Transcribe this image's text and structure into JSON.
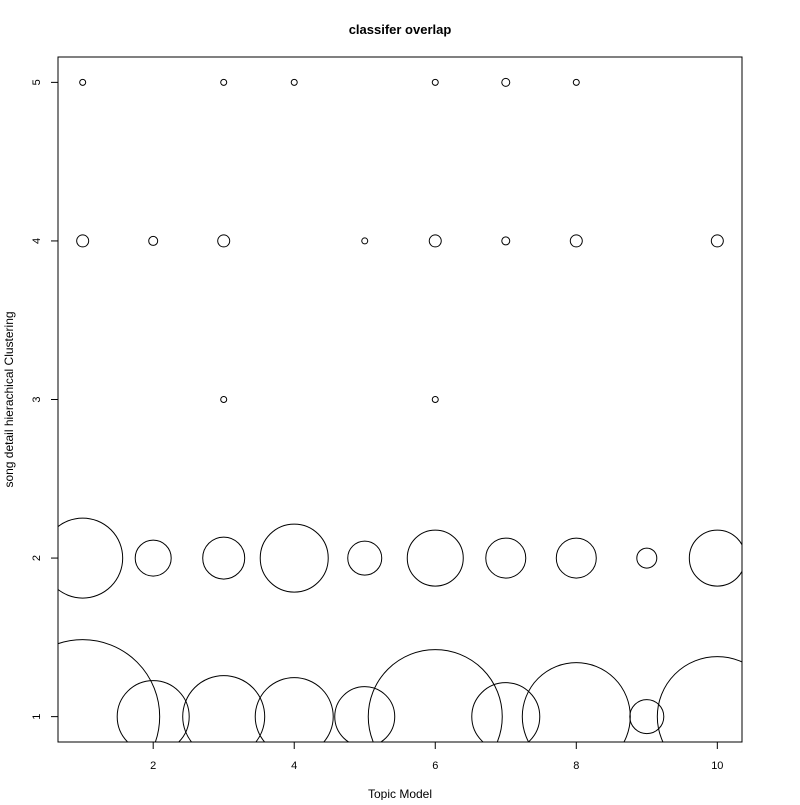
{
  "chart_data": {
    "type": "scatter",
    "title": "classifer overlap",
    "xlabel": "Topic Model",
    "ylabel": "song detail hierachical Clustering",
    "xlim": [
      0.65,
      10.35
    ],
    "ylim": [
      0.84,
      5.16
    ],
    "xticks": [
      2,
      4,
      6,
      8,
      10
    ],
    "yticks": [
      1,
      2,
      3,
      4,
      5
    ],
    "grid": false,
    "legend": "none",
    "points": [
      {
        "x": 1,
        "y": 5,
        "size": 3
      },
      {
        "x": 3,
        "y": 5,
        "size": 3
      },
      {
        "x": 4,
        "y": 5,
        "size": 3
      },
      {
        "x": 6,
        "y": 5,
        "size": 3
      },
      {
        "x": 7,
        "y": 5,
        "size": 4
      },
      {
        "x": 8,
        "y": 5,
        "size": 3
      },
      {
        "x": 1,
        "y": 4,
        "size": 6
      },
      {
        "x": 2,
        "y": 4,
        "size": 4.5
      },
      {
        "x": 3,
        "y": 4,
        "size": 6
      },
      {
        "x": 5,
        "y": 4,
        "size": 3
      },
      {
        "x": 6,
        "y": 4,
        "size": 6
      },
      {
        "x": 7,
        "y": 4,
        "size": 4
      },
      {
        "x": 8,
        "y": 4,
        "size": 6
      },
      {
        "x": 10,
        "y": 4,
        "size": 6
      },
      {
        "x": 3,
        "y": 3,
        "size": 3
      },
      {
        "x": 6,
        "y": 3,
        "size": 3
      },
      {
        "x": 1,
        "y": 2,
        "size": 40
      },
      {
        "x": 2,
        "y": 2,
        "size": 18
      },
      {
        "x": 3,
        "y": 2,
        "size": 21
      },
      {
        "x": 4,
        "y": 2,
        "size": 34
      },
      {
        "x": 5,
        "y": 2,
        "size": 17
      },
      {
        "x": 6,
        "y": 2,
        "size": 28
      },
      {
        "x": 7,
        "y": 2,
        "size": 20
      },
      {
        "x": 8,
        "y": 2,
        "size": 20
      },
      {
        "x": 9,
        "y": 2,
        "size": 10
      },
      {
        "x": 10,
        "y": 2,
        "size": 28
      },
      {
        "x": 1,
        "y": 1,
        "size": 77
      },
      {
        "x": 2,
        "y": 1,
        "size": 36
      },
      {
        "x": 3,
        "y": 1,
        "size": 41
      },
      {
        "x": 4,
        "y": 1,
        "size": 39
      },
      {
        "x": 5,
        "y": 1,
        "size": 30
      },
      {
        "x": 6,
        "y": 1,
        "size": 67
      },
      {
        "x": 7,
        "y": 1,
        "size": 34
      },
      {
        "x": 8,
        "y": 1,
        "size": 54
      },
      {
        "x": 9,
        "y": 1,
        "size": 17
      },
      {
        "x": 10,
        "y": 1,
        "size": 60
      }
    ]
  }
}
